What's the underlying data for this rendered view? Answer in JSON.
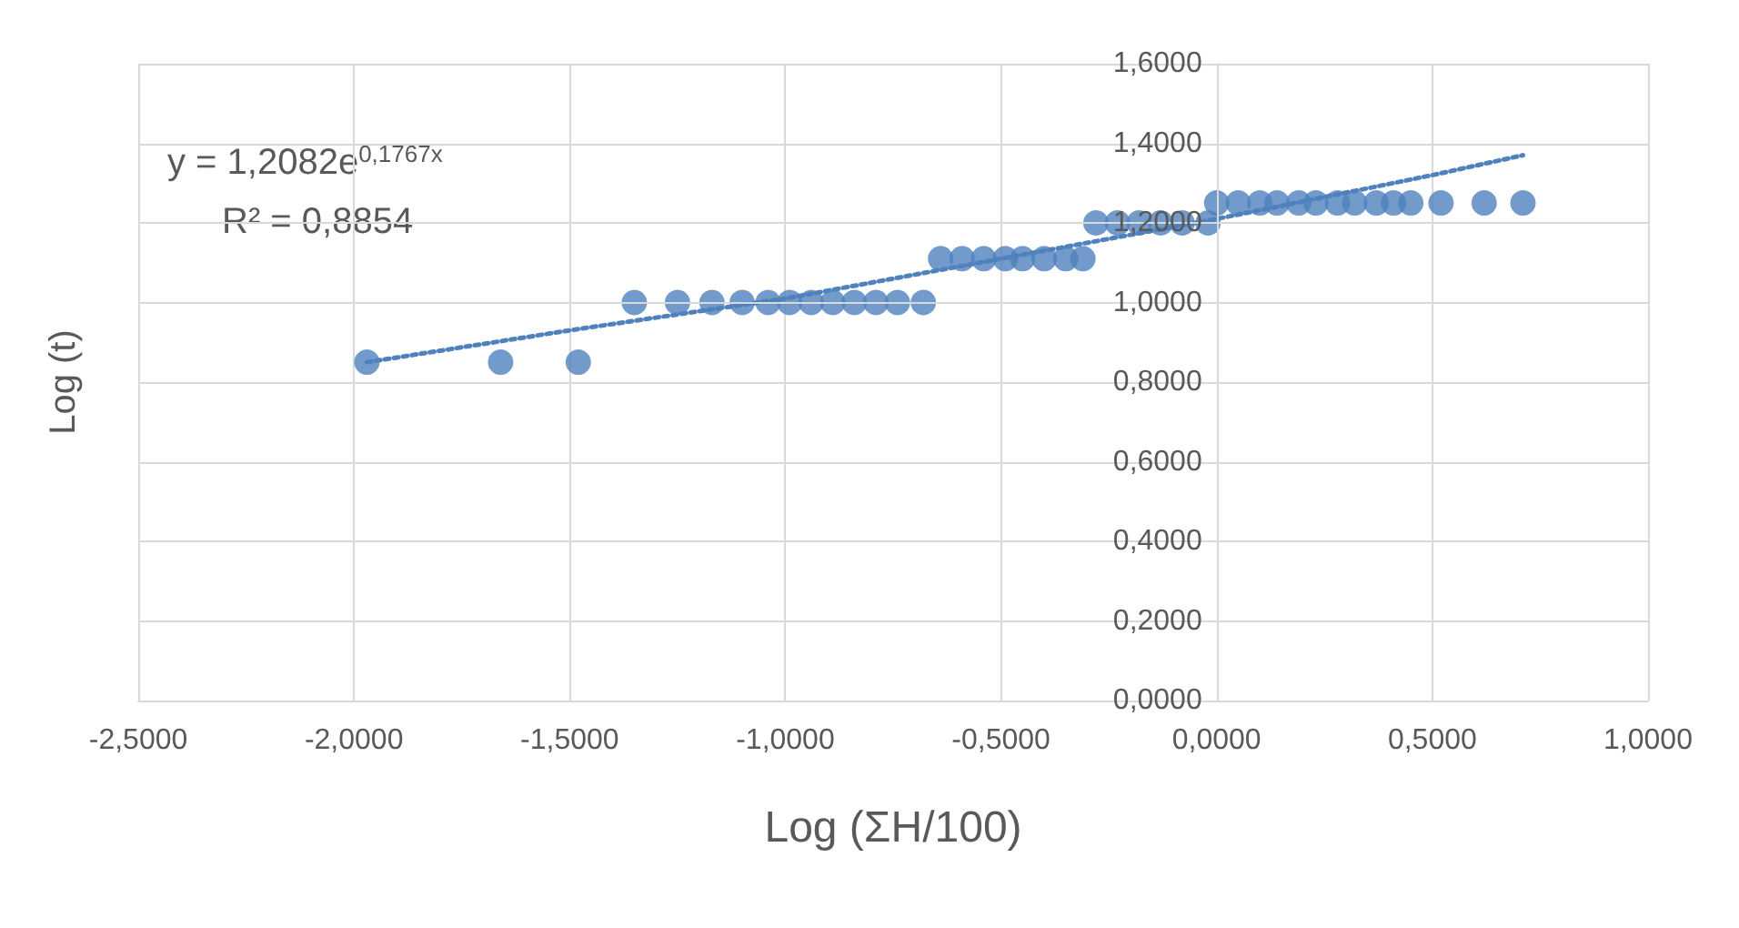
{
  "chart_data": {
    "type": "scatter",
    "xlabel": "Log (ΣH/100)",
    "ylabel": "Log (t)",
    "xlim": [
      -2.5,
      1.0
    ],
    "xticks": [
      {
        "value": -2.5,
        "label": "-2,5000"
      },
      {
        "value": -2.0,
        "label": "-2,0000"
      },
      {
        "value": -1.5,
        "label": "-1,5000"
      },
      {
        "value": -1.0,
        "label": "-1,0000"
      },
      {
        "value": -0.5,
        "label": "-0,5000"
      },
      {
        "value": 0,
        "label": "0,0000"
      },
      {
        "value": 0.5,
        "label": "0,5000"
      },
      {
        "value": 1.0,
        "label": "1,0000"
      }
    ],
    "ylim": [
      0,
      1.6
    ],
    "yticks": [
      {
        "value": 0,
        "label": "0,0000"
      },
      {
        "value": 0.2,
        "label": "0,2000"
      },
      {
        "value": 0.4,
        "label": "0,4000"
      },
      {
        "value": 0.6,
        "label": "0,6000"
      },
      {
        "value": 0.8,
        "label": "0,8000"
      },
      {
        "value": 1.0,
        "label": "1,0000"
      },
      {
        "value": 1.2,
        "label": "1,2000"
      },
      {
        "value": 1.4,
        "label": "1,4000"
      },
      {
        "value": 1.6,
        "label": "1,6000"
      }
    ],
    "grid": true,
    "marker": "circle",
    "annotations": [
      "y = 1,2082e$^{0,1767x}$",
      "R² = 0,8854"
    ],
    "series": [
      {
        "color": "#4f81bd",
        "x": [
          -1.97,
          -1.66,
          -1.48,
          -1.35,
          -1.25,
          -1.17,
          -1.1,
          -1.04,
          -0.99,
          -0.94,
          -0.89,
          -0.84,
          -0.79,
          -0.74,
          -0.68,
          -0.64,
          -0.59,
          -0.54,
          -0.49,
          -0.45,
          -0.4,
          -0.35,
          -0.31,
          -0.28,
          -0.23,
          -0.18,
          -0.13,
          -0.08,
          -0.02,
          0.0,
          0.05,
          0.1,
          0.14,
          0.19,
          0.23,
          0.28,
          0.32,
          0.37,
          0.41,
          0.45,
          0.52,
          0.62,
          0.71
        ],
        "values": [
          0.85,
          0.85,
          0.85,
          1.0,
          1.0,
          1.0,
          1.0,
          1.0,
          1.0,
          1.0,
          1.0,
          1.0,
          1.0,
          1.0,
          1.0,
          1.11,
          1.11,
          1.11,
          1.11,
          1.11,
          1.11,
          1.11,
          1.11,
          1.2,
          1.2,
          1.2,
          1.2,
          1.2,
          1.2,
          1.25,
          1.25,
          1.25,
          1.25,
          1.25,
          1.25,
          1.25,
          1.25,
          1.25,
          1.25,
          1.25,
          1.25,
          1.25,
          1.25
        ]
      },
      {
        "type": "line",
        "line_style": "dotted",
        "marker": "none",
        "color": "#4f81bd",
        "x": [
          -1.97,
          -1.5,
          -1.0,
          -0.5,
          0,
          0.5,
          0.71
        ],
        "values": [
          0.85,
          0.93,
          1.01,
          1.11,
          1.21,
          1.32,
          1.37
        ]
      }
    ]
  }
}
